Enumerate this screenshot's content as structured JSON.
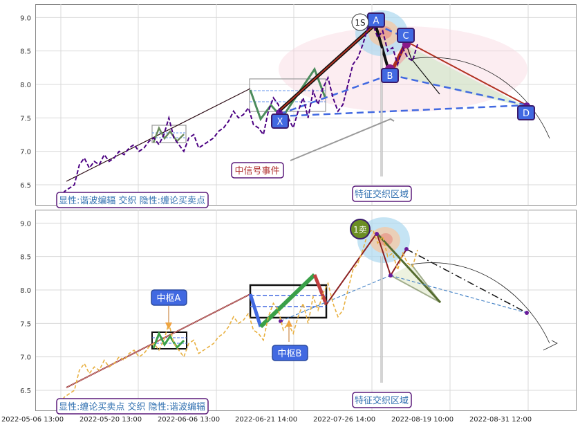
{
  "chart_data": [
    {
      "type": "line",
      "title": "",
      "ylim": [
        6.2,
        9.2
      ],
      "y_ticks": [
        "6.5",
        "7.0",
        "7.5",
        "8.0",
        "8.5",
        "9.0"
      ],
      "grid": true,
      "series": [
        {
          "color": "#4b0082",
          "style": "dashed",
          "values": [
            6.3,
            6.4,
            6.45,
            6.5,
            6.8,
            6.9,
            6.75,
            6.85,
            6.8,
            6.95,
            6.85,
            6.9,
            7.0,
            6.95,
            7.05,
            7.1,
            7.0,
            7.05,
            7.15,
            7.2,
            7.1,
            7.25,
            7.5,
            7.2,
            7.1,
            7.0,
            7.2,
            7.25,
            7.05,
            7.1,
            7.15,
            7.2,
            7.3,
            7.35,
            7.45,
            7.6,
            7.5,
            7.55,
            7.65,
            7.4,
            7.35,
            7.25,
            7.6,
            7.8,
            7.7,
            7.4,
            7.5,
            7.35,
            7.6,
            7.8,
            7.5,
            7.9,
            7.7,
            7.95,
            8.1,
            7.8,
            7.6,
            7.7,
            8.0,
            8.3,
            8.4,
            8.6,
            8.85,
            8.9,
            8.7,
            8.8,
            8.5,
            8.55,
            8.3,
            8.55,
            8.4,
            8.35,
            8.6
          ]
        }
      ],
      "labels": {
        "a": "A",
        "b": "B",
        "c": "C",
        "d": "D",
        "x": "X",
        "sell1": "1S",
        "event": "中信号事件",
        "zone": "特征交织区域",
        "caption": "显性:谐波编辐 交织 隐性:缠论买卖点"
      }
    },
    {
      "type": "line",
      "title": "",
      "ylim": [
        6.2,
        9.2
      ],
      "y_ticks": [
        "6.5",
        "7.0",
        "7.5",
        "8.0",
        "8.5",
        "9.0"
      ],
      "grid": true,
      "x_ticks": [
        "2022-05-06 13:00",
        "2022-05-20 13:00",
        "2022-06-06 13:00",
        "2022-06-21 14:00",
        "2022-07-26 14:00",
        "2022-08-19 10:00",
        "2022-08-31 12:00"
      ],
      "series": [
        {
          "color": "#e8b040",
          "style": "dashed",
          "values": [
            6.3,
            6.4,
            6.45,
            6.5,
            6.8,
            6.9,
            6.75,
            6.85,
            6.8,
            6.95,
            6.85,
            6.9,
            7.0,
            6.95,
            7.05,
            7.1,
            7.0,
            7.05,
            7.15,
            7.2,
            7.1,
            7.25,
            7.5,
            7.2,
            7.1,
            7.0,
            7.2,
            7.25,
            7.05,
            7.1,
            7.15,
            7.2,
            7.3,
            7.35,
            7.45,
            7.6,
            7.5,
            7.55,
            7.65,
            7.4,
            7.35,
            7.25,
            7.6,
            7.8,
            7.7,
            7.4,
            7.5,
            7.35,
            7.6,
            7.8,
            7.5,
            7.9,
            7.7,
            7.95,
            8.1,
            7.8,
            7.6,
            7.7,
            8.0,
            8.3,
            8.4,
            8.6,
            8.85,
            8.9,
            8.7,
            8.8,
            8.5,
            8.55,
            8.3,
            8.55,
            8.4,
            8.35,
            8.6
          ]
        }
      ],
      "labels": {
        "zsA": "中枢A",
        "zsB": "中枢B",
        "sell1": "1卖",
        "zone": "特征交织区域",
        "caption": "显性:缠论买卖点 交织 隐性:谐波编辐"
      }
    }
  ],
  "colors": {
    "purple_dark": "#4b0082",
    "label_blue": "#4169e1",
    "accent_red": "#b03020",
    "sell_green": "#6b8e23",
    "price_gold": "#e8b040"
  }
}
